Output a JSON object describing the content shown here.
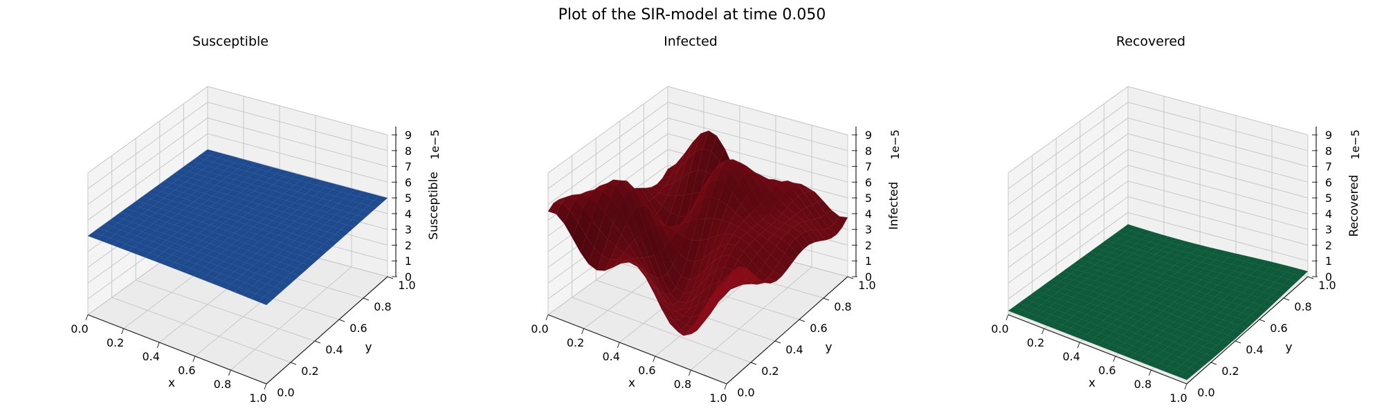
{
  "suptitle": "Plot of the SIR-model at time 0.050",
  "chart_data": [
    {
      "type": "surface3d",
      "title": "Susceptible",
      "xlabel": "x",
      "ylabel": "y",
      "zlabel": "Susceptible",
      "xticks": [
        "0.0",
        "0.2",
        "0.4",
        "0.6",
        "0.8",
        "1.0"
      ],
      "yticks": [
        "0.0",
        "0.2",
        "0.4",
        "0.6",
        "0.8",
        "1.0"
      ],
      "zticks": [
        "0",
        "1",
        "2",
        "3",
        "4",
        "5",
        "6",
        "7",
        "8",
        "9"
      ],
      "z_multiplier": "1e−5",
      "xlim": [
        0,
        1
      ],
      "ylim": [
        0,
        1
      ],
      "zlim": [
        0,
        9
      ],
      "color": "#1f4b8e",
      "surface": "flat plane at approximately 5e-5 across the whole domain"
    },
    {
      "type": "surface3d",
      "title": "Infected",
      "xlabel": "x",
      "ylabel": "y",
      "zlabel": "Infected",
      "xticks": [
        "0.0",
        "0.2",
        "0.4",
        "0.6",
        "0.8",
        "1.0"
      ],
      "yticks": [
        "0.0",
        "0.2",
        "0.4",
        "0.6",
        "0.8",
        "1.0"
      ],
      "zticks": [
        "0",
        "1",
        "2",
        "3",
        "4",
        "5",
        "6",
        "7",
        "8",
        "9"
      ],
      "z_multiplier": "1e−5",
      "xlim": [
        0,
        1
      ],
      "ylim": [
        0,
        1
      ],
      "zlim": [
        0,
        9
      ],
      "color": "#6e0a14",
      "surface": "oscillating surface, peaks near 9e-5 and troughs near 0"
    },
    {
      "type": "surface3d",
      "title": "Recovered",
      "xlabel": "x",
      "ylabel": "y",
      "zlabel": "Recovered",
      "xticks": [
        "0.0",
        "0.2",
        "0.4",
        "0.6",
        "0.8",
        "1.0"
      ],
      "yticks": [
        "0.0",
        "0.2",
        "0.4",
        "0.6",
        "0.8",
        "1.0"
      ],
      "zticks": [
        "0",
        "1",
        "2",
        "3",
        "4",
        "5",
        "6",
        "7",
        "8",
        "9"
      ],
      "z_multiplier": "1e−5",
      "xlim": [
        0,
        1
      ],
      "ylim": [
        0,
        1
      ],
      "zlim": [
        0,
        9
      ],
      "color": "#0e5a3a",
      "surface": "nearly flat surface close to 0"
    }
  ]
}
